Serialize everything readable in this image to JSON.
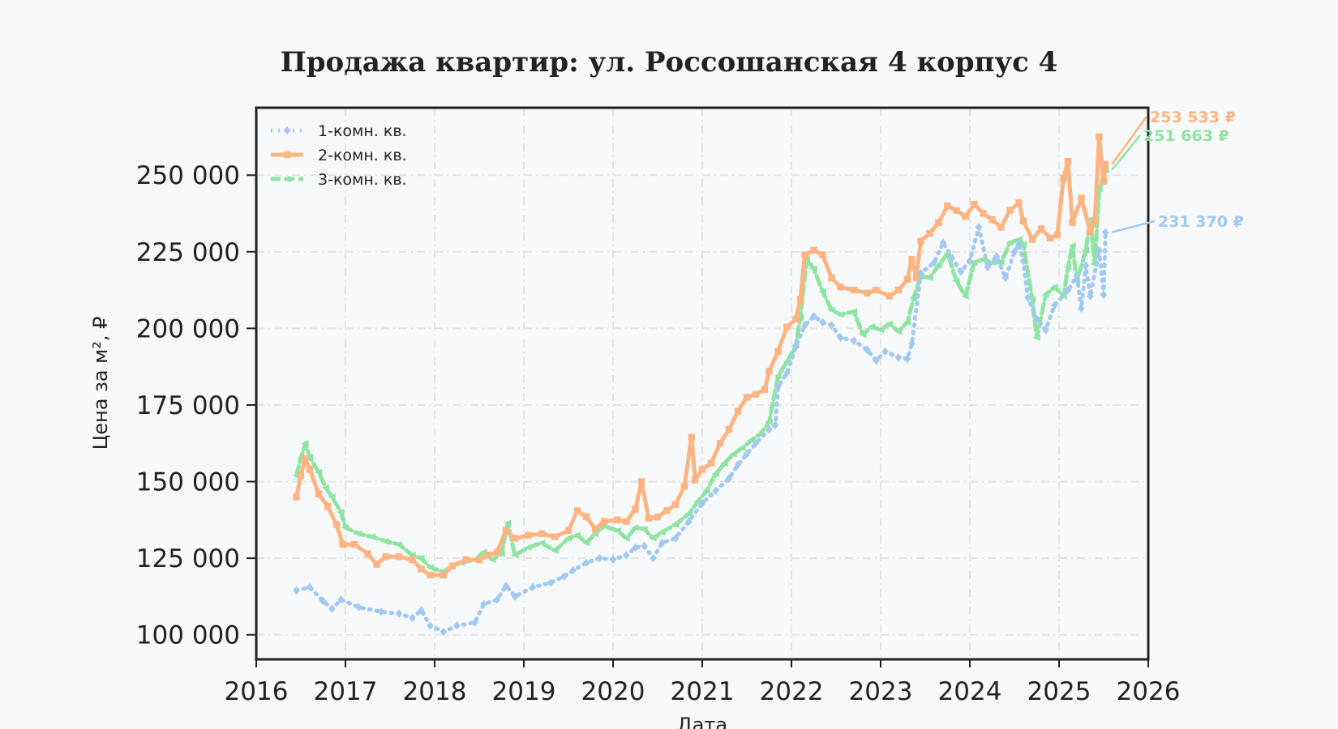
{
  "chart_data": {
    "type": "line",
    "title": "Продажа квартир: ул. Россошанская 4 корпус 4",
    "xlabel": "Дата",
    "ylabel": "Цена за м², ₽",
    "xlim": [
      2016.0,
      2026.0
    ],
    "ylim": [
      92000,
      272000
    ],
    "x_ticks": [
      "2016",
      "2017",
      "2018",
      "2019",
      "2020",
      "2021",
      "2022",
      "2023",
      "2024",
      "2025",
      "2026"
    ],
    "y_ticks": [
      "100 000",
      "125 000",
      "150 000",
      "175 000",
      "200 000",
      "225 000",
      "250 000"
    ],
    "y_tick_values": [
      100000,
      125000,
      150000,
      175000,
      200000,
      225000,
      250000
    ],
    "grid": true,
    "legend_position": "top-left",
    "series": [
      {
        "name": "1-комн. кв.",
        "color": "#a1c9f4",
        "marker": "diamond",
        "end_label": "231 370 ₽",
        "points": [
          [
            2016.45,
            114500
          ],
          [
            2016.6,
            115500
          ],
          [
            2016.75,
            111000
          ],
          [
            2016.85,
            108500
          ],
          [
            2016.95,
            111500
          ],
          [
            2017.15,
            109000
          ],
          [
            2017.4,
            107500
          ],
          [
            2017.6,
            107000
          ],
          [
            2017.75,
            105500
          ],
          [
            2017.85,
            108000
          ],
          [
            2017.95,
            103000
          ],
          [
            2018.1,
            101000
          ],
          [
            2018.25,
            103000
          ],
          [
            2018.45,
            104000
          ],
          [
            2018.55,
            110000
          ],
          [
            2018.7,
            111500
          ],
          [
            2018.8,
            116000
          ],
          [
            2018.9,
            112500
          ],
          [
            2019.1,
            115500
          ],
          [
            2019.3,
            117000
          ],
          [
            2019.45,
            119000
          ],
          [
            2019.55,
            121000
          ],
          [
            2019.7,
            123500
          ],
          [
            2019.85,
            125000
          ],
          [
            2020.0,
            124500
          ],
          [
            2020.15,
            126000
          ],
          [
            2020.25,
            128500
          ],
          [
            2020.35,
            129000
          ],
          [
            2020.45,
            125000
          ],
          [
            2020.55,
            130000
          ],
          [
            2020.7,
            131500
          ],
          [
            2020.85,
            137000
          ],
          [
            2021.0,
            143000
          ],
          [
            2021.15,
            147000
          ],
          [
            2021.3,
            151000
          ],
          [
            2021.4,
            155500
          ],
          [
            2021.5,
            159000
          ],
          [
            2021.6,
            162500
          ],
          [
            2021.75,
            167000
          ],
          [
            2021.82,
            168500
          ],
          [
            2021.85,
            181000
          ],
          [
            2021.95,
            185500
          ],
          [
            2022.05,
            194000
          ],
          [
            2022.15,
            201000
          ],
          [
            2022.25,
            204000
          ],
          [
            2022.35,
            202000
          ],
          [
            2022.45,
            201000
          ],
          [
            2022.55,
            197000
          ],
          [
            2022.7,
            196000
          ],
          [
            2022.85,
            193000
          ],
          [
            2022.95,
            189500
          ],
          [
            2023.05,
            192500
          ],
          [
            2023.2,
            190500
          ],
          [
            2023.3,
            190000
          ],
          [
            2023.35,
            195000
          ],
          [
            2023.45,
            218000
          ],
          [
            2023.6,
            221500
          ],
          [
            2023.7,
            228000
          ],
          [
            2023.8,
            223000
          ],
          [
            2023.9,
            218500
          ],
          [
            2024.0,
            222000
          ],
          [
            2024.1,
            233000
          ],
          [
            2024.2,
            220000
          ],
          [
            2024.3,
            223500
          ],
          [
            2024.4,
            216500
          ],
          [
            2024.5,
            225000
          ],
          [
            2024.55,
            227500
          ],
          [
            2024.6,
            222000
          ],
          [
            2024.65,
            210000
          ],
          [
            2024.75,
            203000
          ],
          [
            2024.85,
            199500
          ],
          [
            2024.95,
            207500
          ],
          [
            2025.1,
            212500
          ],
          [
            2025.2,
            217000
          ],
          [
            2025.25,
            206500
          ],
          [
            2025.3,
            220500
          ],
          [
            2025.35,
            210500
          ],
          [
            2025.45,
            225500
          ],
          [
            2025.5,
            211000
          ],
          [
            2025.52,
            231370
          ]
        ]
      },
      {
        "name": "2-комн. кв.",
        "color": "#ffb482",
        "marker": "square",
        "end_label": "253 533 ₽",
        "points": [
          [
            2016.45,
            145000
          ],
          [
            2016.5,
            152000
          ],
          [
            2016.55,
            157500
          ],
          [
            2016.6,
            154000
          ],
          [
            2016.7,
            146000
          ],
          [
            2016.8,
            142000
          ],
          [
            2016.9,
            136000
          ],
          [
            2016.97,
            129500
          ],
          [
            2017.1,
            129500
          ],
          [
            2017.25,
            126500
          ],
          [
            2017.35,
            123000
          ],
          [
            2017.45,
            125500
          ],
          [
            2017.6,
            125500
          ],
          [
            2017.75,
            124500
          ],
          [
            2017.85,
            121500
          ],
          [
            2017.95,
            119500
          ],
          [
            2018.1,
            119500
          ],
          [
            2018.2,
            122500
          ],
          [
            2018.35,
            124500
          ],
          [
            2018.5,
            124500
          ],
          [
            2018.6,
            126000
          ],
          [
            2018.7,
            127000
          ],
          [
            2018.8,
            134000
          ],
          [
            2018.9,
            131500
          ],
          [
            2019.05,
            132500
          ],
          [
            2019.2,
            133000
          ],
          [
            2019.35,
            132000
          ],
          [
            2019.5,
            134000
          ],
          [
            2019.6,
            140500
          ],
          [
            2019.7,
            138500
          ],
          [
            2019.8,
            134500
          ],
          [
            2019.9,
            137000
          ],
          [
            2020.05,
            137500
          ],
          [
            2020.15,
            137000
          ],
          [
            2020.25,
            141000
          ],
          [
            2020.32,
            150000
          ],
          [
            2020.4,
            138000
          ],
          [
            2020.5,
            138500
          ],
          [
            2020.6,
            140500
          ],
          [
            2020.7,
            142500
          ],
          [
            2020.8,
            148500
          ],
          [
            2020.88,
            164500
          ],
          [
            2020.92,
            150500
          ],
          [
            2021.0,
            154000
          ],
          [
            2021.1,
            156000
          ],
          [
            2021.2,
            162500
          ],
          [
            2021.3,
            167000
          ],
          [
            2021.4,
            173000
          ],
          [
            2021.5,
            177500
          ],
          [
            2021.6,
            178500
          ],
          [
            2021.7,
            180000
          ],
          [
            2021.75,
            186000
          ],
          [
            2021.85,
            192500
          ],
          [
            2021.95,
            200500
          ],
          [
            2022.05,
            203000
          ],
          [
            2022.1,
            209500
          ],
          [
            2022.15,
            224000
          ],
          [
            2022.25,
            225500
          ],
          [
            2022.35,
            224000
          ],
          [
            2022.45,
            216500
          ],
          [
            2022.55,
            213500
          ],
          [
            2022.7,
            212500
          ],
          [
            2022.85,
            211500
          ],
          [
            2022.95,
            212500
          ],
          [
            2023.1,
            210500
          ],
          [
            2023.2,
            212500
          ],
          [
            2023.3,
            216000
          ],
          [
            2023.35,
            222500
          ],
          [
            2023.4,
            216500
          ],
          [
            2023.45,
            228500
          ],
          [
            2023.55,
            231000
          ],
          [
            2023.65,
            234500
          ],
          [
            2023.75,
            240000
          ],
          [
            2023.85,
            238500
          ],
          [
            2023.95,
            236500
          ],
          [
            2024.05,
            240500
          ],
          [
            2024.15,
            237500
          ],
          [
            2024.25,
            235500
          ],
          [
            2024.35,
            233000
          ],
          [
            2024.45,
            238500
          ],
          [
            2024.55,
            241000
          ],
          [
            2024.6,
            235000
          ],
          [
            2024.7,
            229000
          ],
          [
            2024.8,
            232500
          ],
          [
            2024.9,
            229500
          ],
          [
            2024.98,
            230500
          ],
          [
            2025.05,
            249000
          ],
          [
            2025.1,
            254500
          ],
          [
            2025.15,
            234500
          ],
          [
            2025.25,
            242500
          ],
          [
            2025.35,
            231500
          ],
          [
            2025.4,
            235000
          ],
          [
            2025.45,
            262500
          ],
          [
            2025.5,
            248000
          ],
          [
            2025.52,
            253533
          ]
        ]
      },
      {
        "name": "3-комн. кв.",
        "color": "#8de5a1",
        "marker": "triangle-left",
        "end_label": "251 663 ₽",
        "points": [
          [
            2016.45,
            152000
          ],
          [
            2016.5,
            157500
          ],
          [
            2016.55,
            162500
          ],
          [
            2016.6,
            158000
          ],
          [
            2016.7,
            153000
          ],
          [
            2016.78,
            148000
          ],
          [
            2016.85,
            145000
          ],
          [
            2016.95,
            140000
          ],
          [
            2017.0,
            135000
          ],
          [
            2017.15,
            133000
          ],
          [
            2017.3,
            132000
          ],
          [
            2017.45,
            130500
          ],
          [
            2017.6,
            129500
          ],
          [
            2017.75,
            126000
          ],
          [
            2017.85,
            125000
          ],
          [
            2017.95,
            122000
          ],
          [
            2018.1,
            120500
          ],
          [
            2018.2,
            122500
          ],
          [
            2018.3,
            123500
          ],
          [
            2018.45,
            124500
          ],
          [
            2018.55,
            127000
          ],
          [
            2018.65,
            124500
          ],
          [
            2018.75,
            126500
          ],
          [
            2018.82,
            136500
          ],
          [
            2018.9,
            126000
          ],
          [
            2019.05,
            128500
          ],
          [
            2019.2,
            130000
          ],
          [
            2019.35,
            127500
          ],
          [
            2019.5,
            131500
          ],
          [
            2019.6,
            132500
          ],
          [
            2019.7,
            130000
          ],
          [
            2019.8,
            133000
          ],
          [
            2019.9,
            135500
          ],
          [
            2020.05,
            134000
          ],
          [
            2020.15,
            131500
          ],
          [
            2020.25,
            135000
          ],
          [
            2020.35,
            134500
          ],
          [
            2020.45,
            131500
          ],
          [
            2020.55,
            133500
          ],
          [
            2020.7,
            136000
          ],
          [
            2020.85,
            139500
          ],
          [
            2020.95,
            143500
          ],
          [
            2021.05,
            147000
          ],
          [
            2021.15,
            152500
          ],
          [
            2021.25,
            156000
          ],
          [
            2021.35,
            159000
          ],
          [
            2021.45,
            161000
          ],
          [
            2021.55,
            163500
          ],
          [
            2021.65,
            165500
          ],
          [
            2021.75,
            169500
          ],
          [
            2021.85,
            184500
          ],
          [
            2021.95,
            189000
          ],
          [
            2022.05,
            194500
          ],
          [
            2022.1,
            203500
          ],
          [
            2022.17,
            222500
          ],
          [
            2022.25,
            219500
          ],
          [
            2022.35,
            212000
          ],
          [
            2022.45,
            206000
          ],
          [
            2022.55,
            204500
          ],
          [
            2022.7,
            205500
          ],
          [
            2022.8,
            198000
          ],
          [
            2022.9,
            200500
          ],
          [
            2023.0,
            199500
          ],
          [
            2023.1,
            201500
          ],
          [
            2023.2,
            199000
          ],
          [
            2023.3,
            202000
          ],
          [
            2023.37,
            210000
          ],
          [
            2023.45,
            217000
          ],
          [
            2023.55,
            216500
          ],
          [
            2023.65,
            220500
          ],
          [
            2023.75,
            224500
          ],
          [
            2023.85,
            215500
          ],
          [
            2023.95,
            210500
          ],
          [
            2024.05,
            221500
          ],
          [
            2024.15,
            222500
          ],
          [
            2024.25,
            221500
          ],
          [
            2024.35,
            221500
          ],
          [
            2024.45,
            228000
          ],
          [
            2024.55,
            229000
          ],
          [
            2024.6,
            227500
          ],
          [
            2024.7,
            209500
          ],
          [
            2024.75,
            197000
          ],
          [
            2024.85,
            211000
          ],
          [
            2024.95,
            213500
          ],
          [
            2025.05,
            210500
          ],
          [
            2025.1,
            220000
          ],
          [
            2025.15,
            227000
          ],
          [
            2025.2,
            215500
          ],
          [
            2025.3,
            225500
          ],
          [
            2025.35,
            235500
          ],
          [
            2025.4,
            221000
          ],
          [
            2025.45,
            245500
          ],
          [
            2025.5,
            248500
          ],
          [
            2025.52,
            251663
          ]
        ]
      }
    ]
  }
}
